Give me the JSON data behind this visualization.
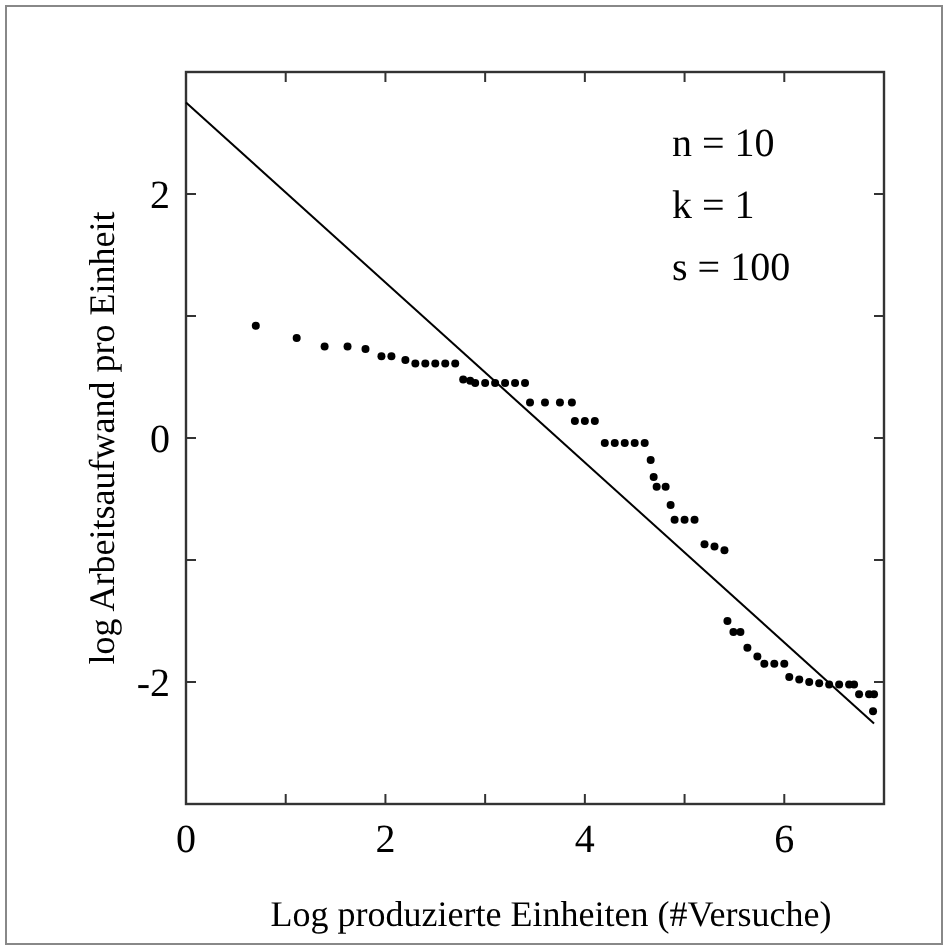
{
  "chart_data": {
    "type": "scatter",
    "xlabel": "Log produzierte Einheiten (#Versuche)",
    "ylabel": "log Arbeitsaufwand pro Einheit",
    "annotations": [
      "n = 10",
      "k = 1",
      "s = 100"
    ],
    "xlim": [
      0,
      7
    ],
    "ylim": [
      -3,
      3
    ],
    "xticks": [
      0,
      {
        "value": 1,
        "label": null
      },
      2,
      {
        "value": 3,
        "label": null
      },
      4,
      {
        "value": 5,
        "label": null
      },
      6,
      {
        "value": 7,
        "label": null
      }
    ],
    "yticks": [
      {
        "value": -3,
        "label": null
      },
      -2,
      {
        "value": -1,
        "label": null
      },
      0,
      {
        "value": 1,
        "label": null
      },
      2,
      {
        "value": 3,
        "label": null
      }
    ],
    "grid": false,
    "series": [
      {
        "color": "#000000",
        "marker": "circle",
        "x": [
          0.7,
          1.11,
          1.39,
          1.62,
          1.8,
          1.96,
          2.06,
          2.2,
          2.3,
          2.4,
          2.5,
          2.6,
          2.7,
          2.78,
          2.85,
          2.9,
          3.0,
          3.1,
          3.2,
          3.3,
          3.4,
          3.45,
          3.6,
          3.75,
          3.87,
          3.9,
          4.0,
          4.1,
          4.2,
          4.3,
          4.4,
          4.5,
          4.6,
          4.66,
          4.69,
          4.72,
          4.81,
          4.86,
          4.9,
          5.0,
          5.1,
          5.2,
          5.3,
          5.4,
          5.43,
          5.49,
          5.56,
          5.63,
          5.73,
          5.8,
          5.9,
          6.0,
          6.05,
          6.15,
          6.25,
          6.35,
          6.45,
          6.55,
          6.65,
          6.7,
          6.75,
          6.85,
          6.9,
          6.89
        ],
        "values": [
          0.92,
          0.82,
          0.75,
          0.75,
          0.73,
          0.67,
          0.67,
          0.64,
          0.61,
          0.61,
          0.61,
          0.61,
          0.61,
          0.48,
          0.47,
          0.45,
          0.45,
          0.45,
          0.45,
          0.45,
          0.45,
          0.29,
          0.29,
          0.29,
          0.29,
          0.14,
          0.14,
          0.14,
          -0.04,
          -0.04,
          -0.04,
          -0.04,
          -0.04,
          -0.18,
          -0.32,
          -0.4,
          -0.4,
          -0.55,
          -0.67,
          -0.67,
          -0.67,
          -0.87,
          -0.89,
          -0.92,
          -1.5,
          -1.59,
          -1.59,
          -1.72,
          -1.79,
          -1.85,
          -1.85,
          -1.85,
          -1.96,
          -1.98,
          -2.0,
          -2.01,
          -2.02,
          -2.02,
          -2.02,
          -2.02,
          -2.1,
          -2.1,
          -2.1,
          -2.24
        ]
      },
      {
        "type": "line",
        "color": "#000000",
        "marker": "none",
        "line_style": "solid",
        "x": [
          0,
          6.9
        ],
        "values": [
          2.75,
          -2.34
        ]
      }
    ]
  }
}
